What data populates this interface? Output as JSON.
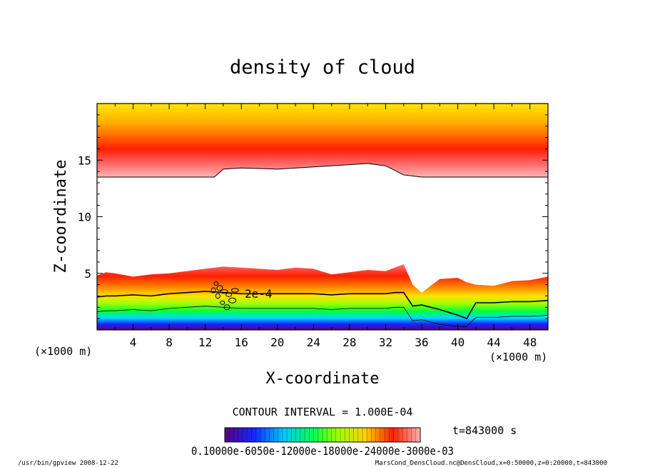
{
  "chart_data": {
    "type": "heatmap",
    "title": "density of cloud",
    "xlabel": "X-coordinate",
    "ylabel": "Z-coordinate",
    "x_unit": "(×1000 m)",
    "y_unit": "(×1000 m)",
    "xlim": [
      0,
      50
    ],
    "ylim": [
      0,
      20
    ],
    "x_ticks": [
      4,
      8,
      12,
      16,
      20,
      24,
      28,
      32,
      36,
      40,
      44,
      48
    ],
    "y_ticks": [
      5,
      10,
      15
    ],
    "contour_interval": "CONTOUR INTERVAL = 1.000E-04",
    "contour_label": "2e-4",
    "time_label": "t=843000 s",
    "colorbar_labels": "0.10000e-6050e-12000e-18000e-24000e-3000e-03",
    "colormap": [
      "#5a0082",
      "#1428ff",
      "#00c8ff",
      "#00ff50",
      "#a0ff00",
      "#ffd000",
      "#ff2000",
      "#ffb4b4"
    ],
    "upper_cloud": {
      "x": [
        0,
        4,
        8,
        12,
        13,
        14,
        16,
        20,
        24,
        28,
        30,
        32,
        34,
        36,
        40,
        44,
        48,
        50
      ],
      "bottom_z": [
        13.5,
        13.5,
        13.5,
        13.5,
        13.5,
        14.2,
        14.3,
        14.2,
        14.4,
        14.6,
        14.7,
        14.5,
        13.7,
        13.5,
        13.5,
        13.5,
        13.5,
        13.5
      ]
    },
    "lower_cloud": {
      "x": [
        0,
        1,
        2,
        4,
        6,
        8,
        10,
        12,
        14,
        16,
        18,
        20,
        22,
        24,
        26,
        28,
        30,
        32,
        33,
        34,
        35,
        36,
        38,
        40,
        41,
        42,
        44,
        46,
        48,
        50
      ],
      "top_z": [
        4.8,
        5.1,
        5.0,
        4.7,
        4.9,
        5.0,
        5.2,
        5.4,
        5.6,
        5.5,
        5.4,
        5.3,
        5.5,
        5.4,
        4.9,
        5.1,
        5.3,
        5.2,
        5.5,
        5.8,
        4.0,
        3.3,
        4.5,
        4.6,
        4.2,
        4.0,
        3.9,
        4.3,
        4.4,
        4.7
      ],
      "contour_2e4_z": [
        2.9,
        3.0,
        3.0,
        3.1,
        3.0,
        3.2,
        3.3,
        3.4,
        3.3,
        3.2,
        3.2,
        3.2,
        3.2,
        3.2,
        3.1,
        3.2,
        3.2,
        3.2,
        3.3,
        3.3,
        2.1,
        2.2,
        1.8,
        1.3,
        1.0,
        2.4,
        2.4,
        2.5,
        2.5,
        2.6
      ]
    }
  },
  "footer": {
    "left": "/usr/bin/gpview  2008-12-22",
    "right": "MarsCond_DensCloud.nc@DensCloud,x=0:50000,z=0:20000,t=843000"
  }
}
